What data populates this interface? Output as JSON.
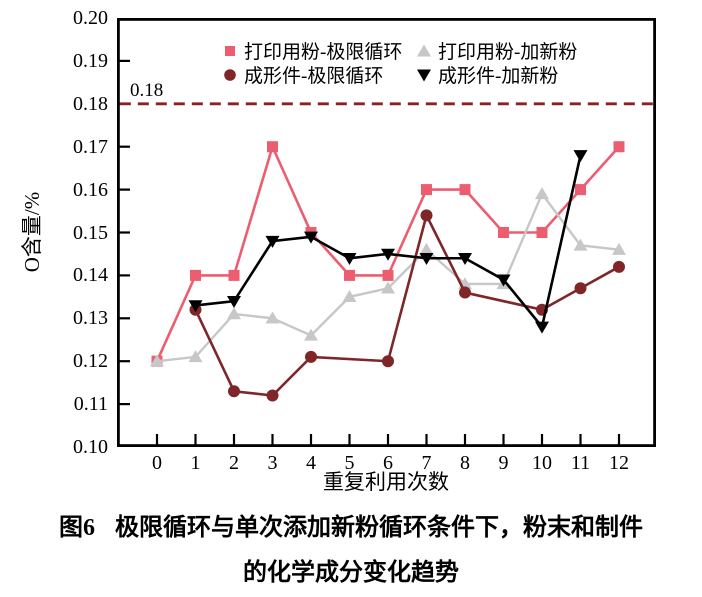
{
  "figure": {
    "y_axis_label": "O含量/%",
    "x_axis_label": "重复利用次数",
    "caption_prefix": "图6",
    "caption_line1": "极限循环与单次添加新粉循环条件下，粉末和制件",
    "caption_line2": "的化学成分变化趋势"
  },
  "chart_data": {
    "type": "line",
    "title": "",
    "xlabel": "重复利用次数",
    "ylabel": "O含量/%",
    "xlim": [
      -1.04,
      13
    ],
    "ylim": [
      0.1,
      0.2
    ],
    "grid": false,
    "legend_position": "top-inside",
    "x_ticks": [
      "0",
      "1",
      "2",
      "3",
      "4",
      "5",
      "6",
      "7",
      "8",
      "9",
      "10",
      "11",
      "12"
    ],
    "y_ticks": [
      "0.10",
      "0.11",
      "0.12",
      "0.13",
      "0.14",
      "0.15",
      "0.16",
      "0.17",
      "0.18",
      "0.19",
      "0.20"
    ],
    "threshold_line": {
      "value": 0.18,
      "label": "0.18",
      "color": "#8B2025",
      "style": "dashed"
    },
    "axis_color": "#000000",
    "series": [
      {
        "name": "打印用粉-极限循环",
        "marker": "square",
        "color": "#EC5D70",
        "x": [
          0,
          1,
          2,
          3,
          4,
          5,
          6,
          7,
          8,
          9,
          10,
          11,
          12
        ],
        "y": [
          0.12,
          0.14,
          0.14,
          0.17,
          0.15,
          0.14,
          0.14,
          0.16,
          0.16,
          0.15,
          0.15,
          0.16,
          0.17
        ]
      },
      {
        "name": "打印用粉-加新粉",
        "marker": "triangle-up",
        "color": "#C7C7C7",
        "x": [
          0,
          1,
          2,
          3,
          4,
          5,
          6,
          7,
          8,
          9,
          10,
          11,
          12
        ],
        "y": [
          0.12,
          0.121,
          0.131,
          0.13,
          0.126,
          0.135,
          0.137,
          0.146,
          0.138,
          0.138,
          0.159,
          0.147,
          0.146
        ]
      },
      {
        "name": "成形件-极限循环",
        "marker": "circle",
        "color": "#7F2629",
        "x": [
          1,
          2,
          3,
          4,
          6,
          7,
          8,
          10,
          11,
          12
        ],
        "y": [
          0.132,
          0.113,
          0.112,
          0.121,
          0.12,
          0.154,
          0.136,
          0.132,
          0.137,
          0.142
        ]
      },
      {
        "name": "成形件-加新粉",
        "marker": "triangle-down",
        "color": "#000000",
        "x": [
          1,
          2,
          3,
          4,
          5,
          6,
          7,
          8,
          9,
          10,
          11
        ],
        "y": [
          0.133,
          0.134,
          0.148,
          0.149,
          0.144,
          0.145,
          0.144,
          0.144,
          0.139,
          0.128,
          0.168
        ]
      }
    ]
  }
}
